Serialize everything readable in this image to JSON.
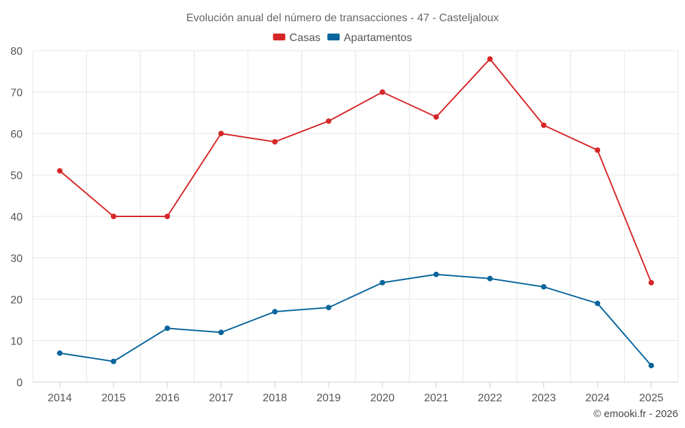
{
  "chart_data": {
    "type": "line",
    "title": "Evolución anual del número de transacciones - 47 - Casteljaloux",
    "categories": [
      "2014",
      "2015",
      "2016",
      "2017",
      "2018",
      "2019",
      "2020",
      "2021",
      "2022",
      "2023",
      "2024",
      "2025"
    ],
    "series": [
      {
        "name": "Casas",
        "color": "#d62728",
        "values": [
          51,
          40,
          40,
          60,
          58,
          63,
          70,
          64,
          78,
          62,
          56,
          24
        ]
      },
      {
        "name": "Apartamentos",
        "color": "#09659c",
        "values": [
          7,
          5,
          13,
          12,
          17,
          18,
          24,
          26,
          25,
          23,
          19,
          4
        ]
      }
    ],
    "ylim": [
      0,
      80
    ],
    "yticks": [
      0,
      10,
      20,
      30,
      40,
      50,
      60,
      70,
      80
    ],
    "xlabel": "",
    "ylabel": "",
    "legend": "top-center",
    "grid": true
  },
  "credit": "© emooki.fr - 2026"
}
